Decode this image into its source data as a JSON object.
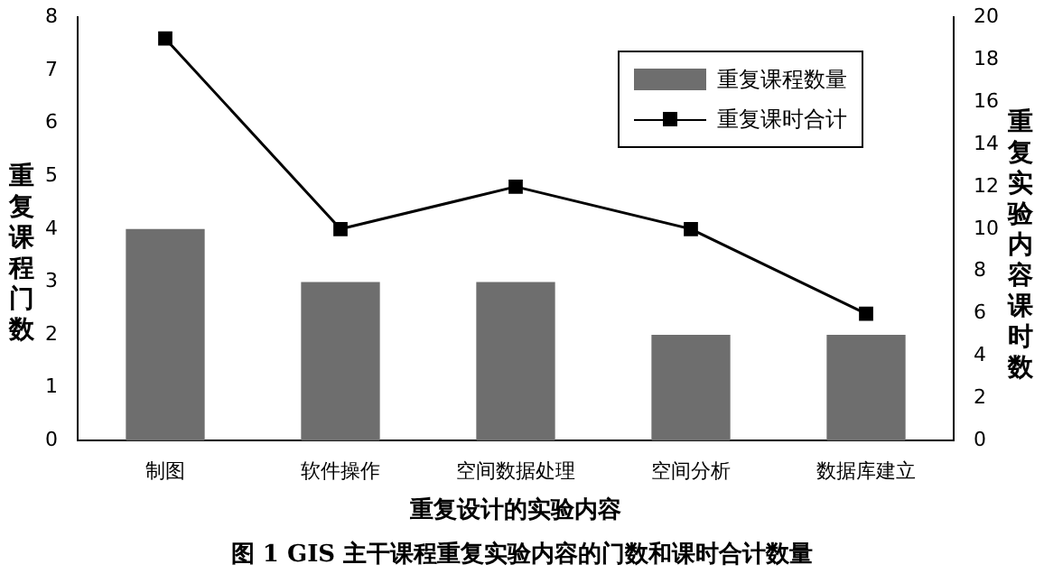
{
  "chart_data": {
    "type": "bar",
    "categories": [
      "制图",
      "软件操作",
      "空间数据处理",
      "空间分析",
      "数据库建立"
    ],
    "series": [
      {
        "name": "重复课程数量",
        "color": "#6e6e6e",
        "values": [
          4,
          3,
          3,
          2,
          2
        ]
      },
      {
        "name": "重复课时合计",
        "type": "line",
        "axis": "y2",
        "color": "#000000",
        "values": [
          19,
          10,
          12,
          10,
          6
        ]
      }
    ],
    "xlabel": "重复设计的实验内容",
    "ylabel": "重复课程门数",
    "y2label": "重复实验内容课时数",
    "ylim": [
      0,
      8
    ],
    "yticks": [
      0,
      1,
      2,
      3,
      4,
      5,
      6,
      7,
      8
    ],
    "y2lim": [
      0,
      20
    ],
    "y2ticks": [
      0,
      2,
      4,
      6,
      8,
      10,
      12,
      14,
      16,
      18,
      20
    ],
    "legend": "top right",
    "marker": "square",
    "line_style": "solid",
    "annotations": [
      "图 1 GIS 主干课程重复实验内容的门数和课时合计数量"
    ]
  }
}
